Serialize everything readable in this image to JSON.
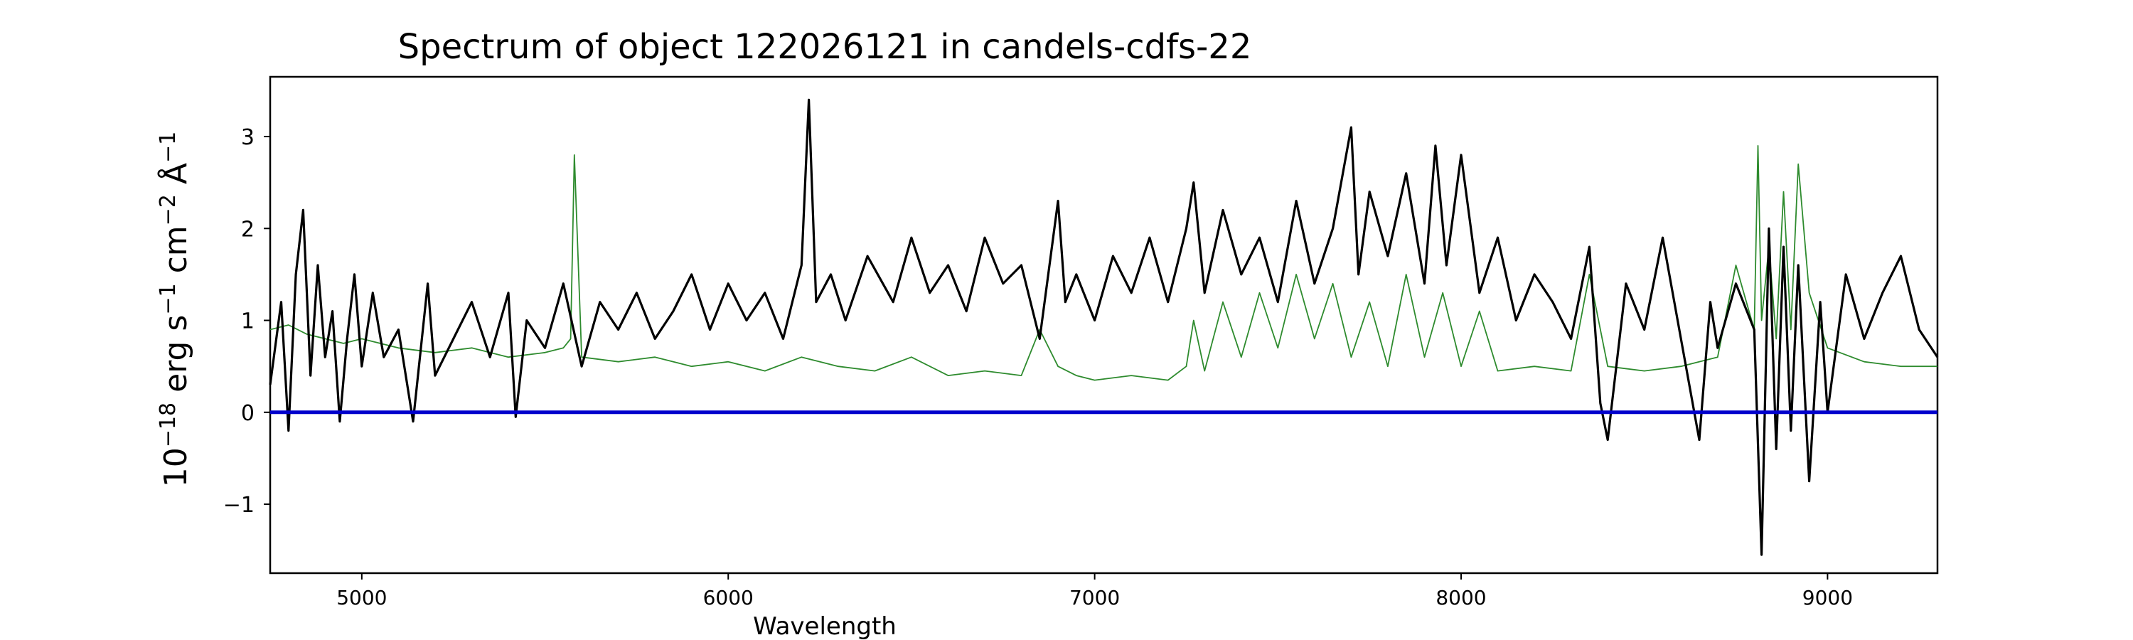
{
  "chart_data": {
    "type": "line",
    "title": "Spectrum of object 122026121 in candels-cdfs-22",
    "xlabel": "Wavelength",
    "ylabel": {
      "base": "10",
      "exp": "−18",
      "unit1": " erg s",
      "exp_s": "−1",
      "unit2": " cm",
      "exp_cm": "−2",
      "unit3": " Å",
      "exp_a": "−1"
    },
    "xlim": [
      4750,
      9300
    ],
    "ylim": [
      -1.75,
      3.65
    ],
    "xticks": [
      5000,
      6000,
      7000,
      8000,
      9000
    ],
    "xtick_labels": [
      "5000",
      "6000",
      "7000",
      "8000",
      "9000"
    ],
    "yticks": [
      -1,
      0,
      1,
      2,
      3
    ],
    "ytick_labels": [
      "−1",
      "0",
      "1",
      "2",
      "3"
    ],
    "grid": false,
    "legend": "none",
    "colors": {
      "flux": "#000000",
      "error": "#2e8b2e",
      "zero": "#0000cc"
    },
    "series": [
      {
        "role": "flux",
        "x": [
          4750,
          4780,
          4800,
          4820,
          4840,
          4860,
          4880,
          4900,
          4920,
          4940,
          4960,
          4980,
          5000,
          5030,
          5060,
          5100,
          5140,
          5180,
          5200,
          5250,
          5300,
          5350,
          5400,
          5420,
          5450,
          5500,
          5550,
          5600,
          5650,
          5700,
          5750,
          5800,
          5850,
          5900,
          5950,
          6000,
          6050,
          6100,
          6150,
          6200,
          6220,
          6240,
          6280,
          6320,
          6380,
          6450,
          6500,
          6550,
          6600,
          6650,
          6700,
          6750,
          6800,
          6850,
          6900,
          6920,
          6950,
          7000,
          7050,
          7100,
          7150,
          7200,
          7250,
          7270,
          7300,
          7350,
          7400,
          7450,
          7500,
          7550,
          7600,
          7650,
          7700,
          7720,
          7750,
          7800,
          7850,
          7900,
          7930,
          7960,
          8000,
          8050,
          8100,
          8150,
          8200,
          8250,
          8300,
          8350,
          8380,
          8400,
          8450,
          8500,
          8550,
          8600,
          8650,
          8680,
          8700,
          8750,
          8800,
          8820,
          8840,
          8860,
          8880,
          8900,
          8920,
          8950,
          8980,
          9000,
          9050,
          9100,
          9150,
          9200,
          9250,
          9300
        ],
        "y": [
          0.3,
          1.2,
          -0.2,
          1.5,
          2.2,
          0.4,
          1.6,
          0.6,
          1.1,
          -0.1,
          0.8,
          1.5,
          0.5,
          1.3,
          0.6,
          0.9,
          -0.1,
          1.4,
          0.4,
          0.8,
          1.2,
          0.6,
          1.3,
          -0.05,
          1.0,
          0.7,
          1.4,
          0.5,
          1.2,
          0.9,
          1.3,
          0.8,
          1.1,
          1.5,
          0.9,
          1.4,
          1.0,
          1.3,
          0.8,
          1.6,
          3.4,
          1.2,
          1.5,
          1.0,
          1.7,
          1.2,
          1.9,
          1.3,
          1.6,
          1.1,
          1.9,
          1.4,
          1.6,
          0.8,
          2.3,
          1.2,
          1.5,
          1.0,
          1.7,
          1.3,
          1.9,
          1.2,
          2.0,
          2.5,
          1.3,
          2.2,
          1.5,
          1.9,
          1.2,
          2.3,
          1.4,
          2.0,
          3.1,
          1.5,
          2.4,
          1.7,
          2.6,
          1.4,
          2.9,
          1.6,
          2.8,
          1.3,
          1.9,
          1.0,
          1.5,
          1.2,
          0.8,
          1.8,
          0.1,
          -0.3,
          1.4,
          0.9,
          1.9,
          0.8,
          -0.3,
          1.2,
          0.7,
          1.4,
          0.9,
          -1.55,
          2.0,
          -0.4,
          1.8,
          -0.2,
          1.6,
          -0.75,
          1.2,
          0.0,
          1.5,
          0.8,
          1.3,
          1.7,
          0.9,
          0.6
        ]
      },
      {
        "role": "error",
        "x": [
          4750,
          4800,
          4850,
          4900,
          4950,
          5000,
          5100,
          5200,
          5300,
          5400,
          5500,
          5550,
          5570,
          5580,
          5600,
          5700,
          5800,
          5900,
          6000,
          6100,
          6200,
          6300,
          6400,
          6500,
          6600,
          6700,
          6800,
          6850,
          6900,
          6950,
          7000,
          7100,
          7200,
          7250,
          7270,
          7300,
          7350,
          7400,
          7450,
          7500,
          7550,
          7600,
          7650,
          7700,
          7750,
          7800,
          7850,
          7900,
          7950,
          8000,
          8050,
          8100,
          8200,
          8300,
          8350,
          8400,
          8500,
          8600,
          8700,
          8750,
          8800,
          8810,
          8820,
          8840,
          8860,
          8880,
          8900,
          8920,
          8950,
          9000,
          9100,
          9200,
          9300
        ],
        "y": [
          0.9,
          0.95,
          0.85,
          0.8,
          0.75,
          0.8,
          0.7,
          0.65,
          0.7,
          0.6,
          0.65,
          0.7,
          0.8,
          2.8,
          0.6,
          0.55,
          0.6,
          0.5,
          0.55,
          0.45,
          0.6,
          0.5,
          0.45,
          0.6,
          0.4,
          0.45,
          0.4,
          0.9,
          0.5,
          0.4,
          0.35,
          0.4,
          0.35,
          0.5,
          1.0,
          0.45,
          1.2,
          0.6,
          1.3,
          0.7,
          1.5,
          0.8,
          1.4,
          0.6,
          1.2,
          0.5,
          1.5,
          0.6,
          1.3,
          0.5,
          1.1,
          0.45,
          0.5,
          0.45,
          1.5,
          0.5,
          0.45,
          0.5,
          0.6,
          1.6,
          0.9,
          2.9,
          1.0,
          1.8,
          0.8,
          2.4,
          0.9,
          2.7,
          1.3,
          0.7,
          0.55,
          0.5,
          0.5
        ]
      },
      {
        "role": "zero",
        "x": [
          4750,
          9300
        ],
        "y": [
          0,
          0
        ]
      }
    ]
  }
}
